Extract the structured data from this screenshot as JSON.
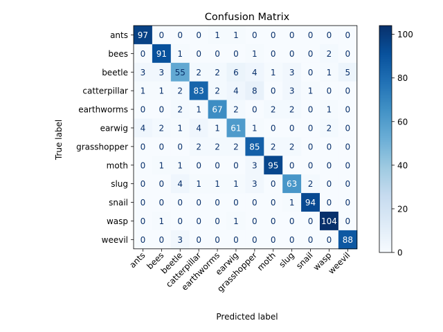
{
  "chart_data": {
    "type": "heatmap",
    "title": "Confusion Matrix",
    "xlabel": "Predicted label",
    "ylabel": "True label",
    "labels": [
      "ants",
      "bees",
      "beetle",
      "catterpillar",
      "earthworms",
      "earwig",
      "grasshopper",
      "moth",
      "slug",
      "snail",
      "wasp",
      "weevil"
    ],
    "matrix": [
      [
        97,
        0,
        0,
        0,
        1,
        1,
        0,
        0,
        0,
        0,
        0,
        0
      ],
      [
        0,
        91,
        1,
        0,
        0,
        0,
        1,
        0,
        0,
        0,
        2,
        0
      ],
      [
        3,
        3,
        55,
        2,
        2,
        6,
        4,
        1,
        3,
        0,
        1,
        5
      ],
      [
        1,
        1,
        2,
        83,
        2,
        4,
        8,
        0,
        3,
        1,
        0,
        0
      ],
      [
        0,
        0,
        2,
        1,
        67,
        2,
        0,
        2,
        2,
        0,
        1,
        0
      ],
      [
        4,
        2,
        1,
        4,
        1,
        61,
        1,
        0,
        0,
        0,
        2,
        0
      ],
      [
        0,
        0,
        0,
        2,
        2,
        2,
        85,
        2,
        2,
        0,
        0,
        0
      ],
      [
        0,
        1,
        1,
        0,
        0,
        0,
        3,
        95,
        0,
        0,
        0,
        0
      ],
      [
        0,
        0,
        4,
        1,
        1,
        1,
        3,
        0,
        63,
        2,
        0,
        0
      ],
      [
        0,
        0,
        0,
        0,
        0,
        0,
        0,
        0,
        1,
        94,
        0,
        0
      ],
      [
        0,
        1,
        0,
        0,
        0,
        1,
        0,
        0,
        0,
        0,
        104,
        0
      ],
      [
        0,
        0,
        3,
        0,
        0,
        0,
        0,
        0,
        0,
        0,
        0,
        88
      ]
    ],
    "colorbar": {
      "min": 0,
      "max": 104,
      "ticks": [
        "0",
        "20",
        "40",
        "60",
        "80",
        "100"
      ],
      "colormap": "Blues",
      "colors": [
        "#f7fbff",
        "#deebf7",
        "#c6dbef",
        "#9ecae1",
        "#6baed6",
        "#4292c6",
        "#2171b5",
        "#08519c",
        "#08306b"
      ]
    },
    "grid": false
  }
}
